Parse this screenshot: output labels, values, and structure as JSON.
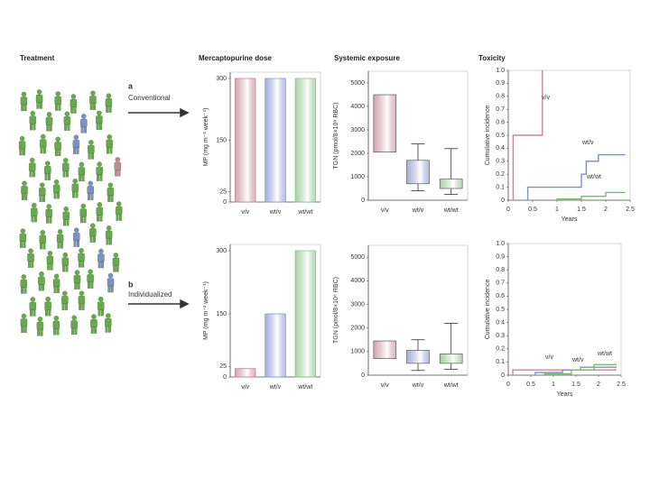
{
  "headers": [
    "Treatment",
    "Mercaptopurine dose",
    "Systemic exposure",
    "Toxicity"
  ],
  "rows": [
    {
      "letter": "a",
      "label": "Conventional"
    },
    {
      "letter": "b",
      "label": "Individualized"
    }
  ],
  "chart_data": [
    {
      "type": "bar",
      "ylabel": "MP (mg m⁻² week⁻¹)",
      "categories": [
        "v/v",
        "wt/v",
        "wt/wt"
      ],
      "values": [
        300,
        300,
        300
      ],
      "colors": [
        "#c48a97",
        "#8d97cc",
        "#8cc489"
      ],
      "ylim": [
        0,
        300
      ],
      "yticks": [
        0,
        25,
        150,
        300
      ]
    },
    {
      "type": "box",
      "ylabel": "TGN (pmol/8×10⁸ RBC)",
      "categories": [
        "v/v",
        "wt/v",
        "wt/wt"
      ],
      "boxes": [
        {
          "q1": 2050,
          "q3": 4500
        },
        {
          "low": 400,
          "q1": 700,
          "q3": 1700,
          "high": 2400
        },
        {
          "low": 250,
          "q1": 500,
          "q3": 900,
          "high": 2200
        }
      ],
      "colors": [
        "#c48a97",
        "#8d97cc",
        "#8cc489"
      ],
      "ylim": [
        0,
        5500
      ],
      "yticks": [
        0,
        1000,
        2000,
        3000,
        4000,
        5000
      ]
    },
    {
      "type": "line",
      "ylabel": "Cumulative incidence",
      "xlabel": "Years",
      "series": [
        {
          "name": "v/v",
          "color": "#c48a97",
          "x": [
            0.1,
            0.1,
            0.7,
            0.7
          ],
          "y": [
            0,
            0.5,
            0.5,
            1.0
          ]
        },
        {
          "name": "wt/v",
          "color": "#7d8fc4",
          "x": [
            0.4,
            0.4,
            1.5,
            1.5,
            1.6,
            1.6,
            1.85,
            1.85,
            2.4
          ],
          "y": [
            0,
            0.1,
            0.1,
            0.2,
            0.2,
            0.3,
            0.3,
            0.35,
            0.35
          ]
        },
        {
          "name": "wt/wt",
          "color": "#7dba6d",
          "x": [
            1.0,
            1.0,
            1.5,
            1.5,
            2.0,
            2.0,
            2.4
          ],
          "y": [
            0,
            0.01,
            0.01,
            0.03,
            0.03,
            0.06,
            0.06
          ]
        }
      ],
      "xlim": [
        0,
        2.5
      ],
      "xticks": [
        0,
        0.5,
        1,
        1.5,
        2,
        2.5
      ],
      "ylim": [
        0,
        1
      ],
      "yticks": [
        0,
        0.1,
        0.2,
        0.3,
        0.4,
        0.5,
        0.6,
        0.7,
        0.8,
        0.9,
        {
          "value": 1,
          "label": "1.0"
        }
      ]
    },
    {
      "type": "bar",
      "ylabel": "MP (mg m⁻² week⁻¹)",
      "categories": [
        "v/v",
        "wt/v",
        "wt/wt"
      ],
      "values": [
        20,
        150,
        300
      ],
      "colors": [
        "#c48a97",
        "#8d97cc",
        "#8cc489"
      ],
      "ylim": [
        0,
        300
      ],
      "yticks": [
        0,
        25,
        150,
        300
      ]
    },
    {
      "type": "box",
      "ylabel": "TGN (pmol/8×10⁸ RBC)",
      "categories": [
        "v/v",
        "wt/v",
        "wt/wt"
      ],
      "boxes": [
        {
          "q1": 700,
          "q3": 1450
        },
        {
          "low": 200,
          "q1": 500,
          "q3": 1050,
          "high": 1500
        },
        {
          "low": 250,
          "q1": 500,
          "q3": 900,
          "high": 2200
        }
      ],
      "colors": [
        "#c48a97",
        "#8d97cc",
        "#8cc489"
      ],
      "ylim": [
        0,
        5500
      ],
      "yticks": [
        0,
        1000,
        2000,
        3000,
        4000,
        5000
      ]
    },
    {
      "type": "line",
      "ylabel": "Cumulative incidence",
      "xlabel": "Years",
      "series": [
        {
          "name": "v/v",
          "color": "#c48a97",
          "x": [
            0.1,
            0.1,
            2.4
          ],
          "y": [
            0,
            0.04,
            0.04
          ]
        },
        {
          "name": "wt/v",
          "color": "#7d8fc4",
          "x": [
            0.6,
            0.6,
            1.2,
            1.2,
            1.6,
            1.6,
            2.4
          ],
          "y": [
            0,
            0.02,
            0.02,
            0.04,
            0.04,
            0.06,
            0.06
          ]
        },
        {
          "name": "wt/wt",
          "color": "#7dba6d",
          "x": [
            0.8,
            0.8,
            1.4,
            1.4,
            1.9,
            1.9,
            2.4
          ],
          "y": [
            0,
            0.01,
            0.01,
            0.04,
            0.04,
            0.08,
            0.08
          ]
        }
      ],
      "xlim": [
        0,
        2.5
      ],
      "xticks": [
        0,
        0.5,
        1,
        1.5,
        2,
        2.5
      ],
      "ylim": [
        0,
        1
      ],
      "yticks": [
        0,
        0.1,
        0.2,
        0.3,
        0.4,
        0.5,
        0.6,
        0.7,
        0.8,
        0.9,
        {
          "value": 1,
          "label": "1.0"
        }
      ]
    }
  ]
}
